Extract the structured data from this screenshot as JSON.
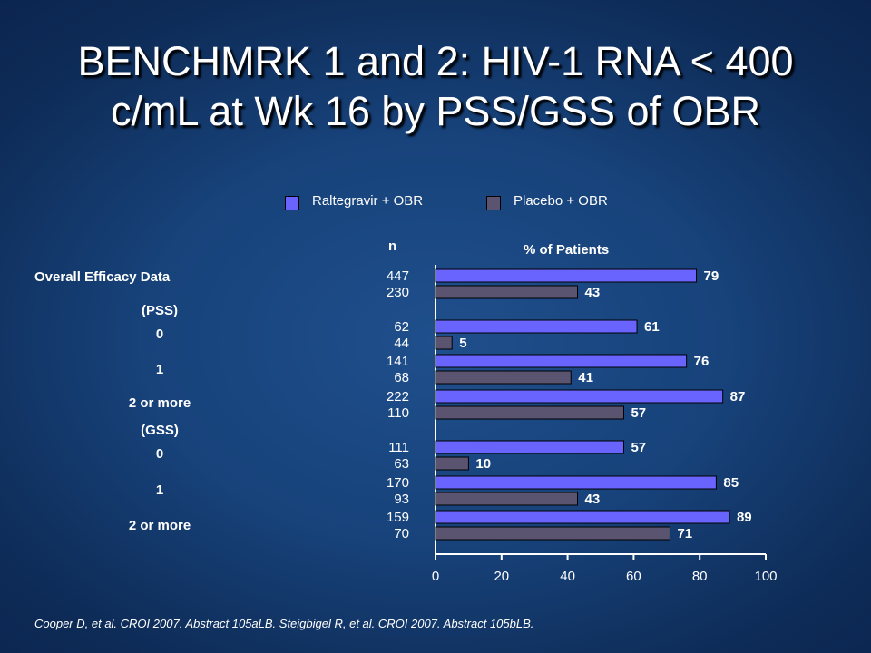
{
  "title_line1": "BENCHMRK 1 and 2: HIV-1 RNA < 400",
  "title_line2": "c/mL at Wk 16 by PSS/GSS of OBR",
  "legend": [
    {
      "label": "Raltegravir + OBR",
      "color": "#6a64ff"
    },
    {
      "label": "Placebo + OBR",
      "color": "#5a5470"
    }
  ],
  "n_header": "n",
  "pct_header": "% of Patients",
  "group_labels": {
    "overall": "Overall Efficacy Data",
    "pss": "(PSS)",
    "gss": "(GSS)"
  },
  "row_labels": [
    "0",
    "1",
    "2 or more",
    "0",
    "1",
    "2 or more"
  ],
  "footnote": "Cooper D, et al. CROI 2007. Abstract 105aLB. Steigbigel R, et al. CROI 2007. Abstract 105bLB.",
  "chart_data": {
    "type": "bar",
    "orientation": "horizontal",
    "categories": [
      "Overall Efficacy Data",
      "(PSS) 0",
      "(PSS) 1",
      "(PSS) 2 or more",
      "(GSS) 0",
      "(GSS) 1",
      "(GSS) 2 or more"
    ],
    "series": [
      {
        "name": "Raltegravir + OBR",
        "values": [
          79,
          61,
          76,
          87,
          57,
          85,
          89
        ],
        "n": [
          "447",
          "62",
          "141",
          "222",
          "111",
          "170",
          "159"
        ],
        "color": "#6a64ff"
      },
      {
        "name": "Placebo + OBR",
        "values": [
          43,
          5,
          41,
          57,
          10,
          43,
          71
        ],
        "n": [
          "230",
          "44",
          "68",
          "110",
          "63",
          "93",
          "70"
        ],
        "color": "#5a5470"
      }
    ],
    "xlabel": "% of Patients",
    "xlim": [
      0,
      100
    ],
    "xticks": [
      "0",
      "20",
      "40",
      "60",
      "80",
      "100"
    ],
    "legend_position": "top"
  }
}
